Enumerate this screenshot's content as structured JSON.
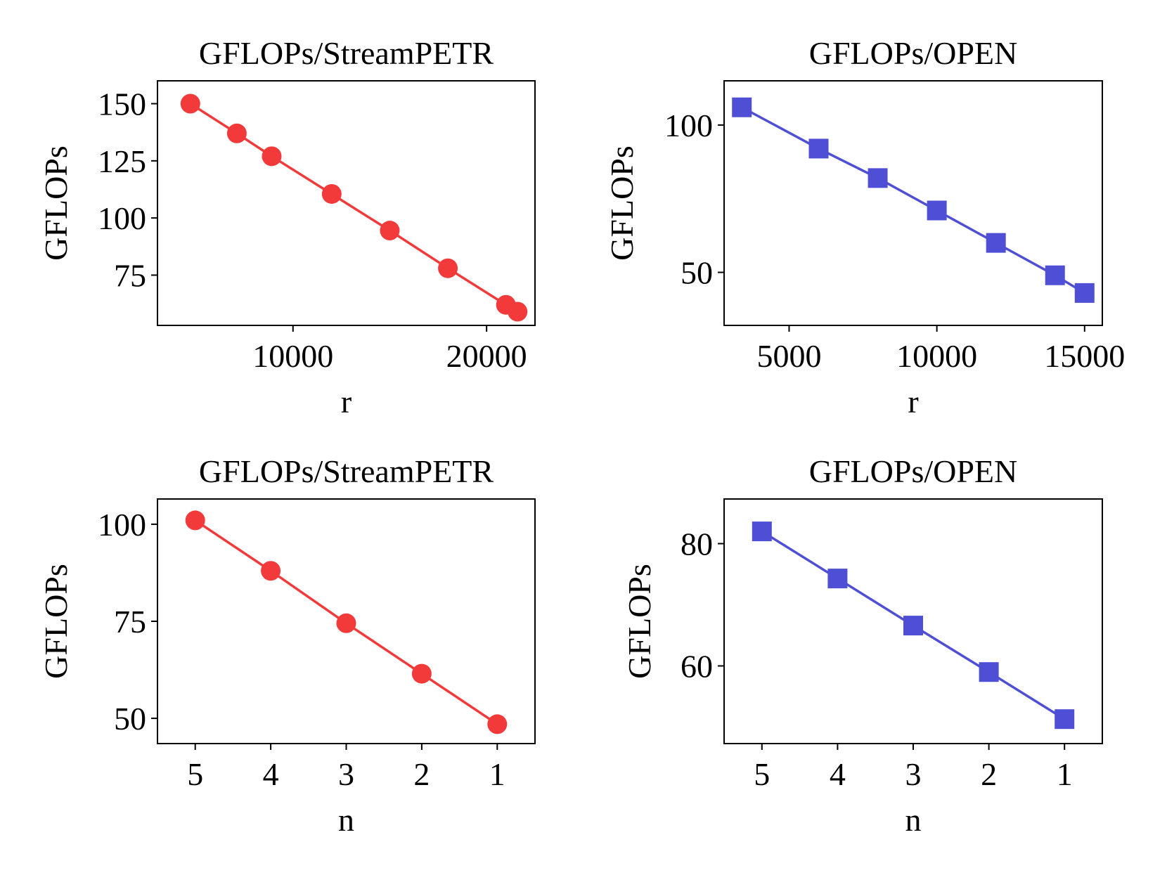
{
  "chart_data": [
    {
      "type": "line",
      "title": "GFLOPs/StreamPETR",
      "xlabel": "r",
      "ylabel": "GFLOPs",
      "xlim": [
        3000,
        22500
      ],
      "ylim": [
        53,
        160
      ],
      "xticks": [
        10000,
        20000
      ],
      "yticks": [
        75,
        100,
        125,
        150
      ],
      "xreversed": false,
      "color": "#f23a3a",
      "marker": "circle",
      "series": [
        {
          "name": "StreamPETR",
          "x": [
            4700,
            7100,
            8900,
            12000,
            15000,
            18000,
            21000,
            21600
          ],
          "y": [
            150,
            137,
            127,
            110.5,
            94.5,
            78,
            62,
            59
          ]
        }
      ]
    },
    {
      "type": "line",
      "title": "GFLOPs/OPEN",
      "xlabel": "r",
      "ylabel": "GFLOPs",
      "xlim": [
        2800,
        15600
      ],
      "ylim": [
        32,
        115
      ],
      "xticks": [
        5000,
        10000,
        15000
      ],
      "yticks": [
        50,
        100
      ],
      "xreversed": false,
      "color": "#4f4fd6",
      "marker": "square",
      "series": [
        {
          "name": "OPEN",
          "x": [
            3400,
            6000,
            8000,
            10000,
            12000,
            14000,
            15000
          ],
          "y": [
            106,
            92,
            82,
            71,
            60,
            49,
            43
          ]
        }
      ]
    },
    {
      "type": "line",
      "title": "GFLOPs/StreamPETR",
      "xlabel": "n",
      "ylabel": "GFLOPs",
      "xlim": [
        5.5,
        0.5
      ],
      "ylim": [
        43.5,
        106.5
      ],
      "xticks": [
        5,
        4,
        3,
        2,
        1
      ],
      "yticks": [
        50,
        75,
        100
      ],
      "xreversed": true,
      "color": "#f23a3a",
      "marker": "circle",
      "series": [
        {
          "name": "StreamPETR",
          "x": [
            5,
            4,
            3,
            2,
            1
          ],
          "y": [
            101,
            88,
            74.5,
            61.5,
            48.5
          ]
        }
      ]
    },
    {
      "type": "line",
      "title": "GFLOPs/OPEN",
      "xlabel": "n",
      "ylabel": "GFLOPs",
      "xlim": [
        5.5,
        0.5
      ],
      "ylim": [
        47.3,
        87.3
      ],
      "xticks": [
        5,
        4,
        3,
        2,
        1
      ],
      "yticks": [
        60,
        80
      ],
      "xreversed": true,
      "color": "#4f4fd6",
      "marker": "square",
      "series": [
        {
          "name": "OPEN",
          "x": [
            5,
            4,
            3,
            2,
            1
          ],
          "y": [
            82,
            74.3,
            66.6,
            59,
            51.3
          ]
        }
      ]
    }
  ]
}
